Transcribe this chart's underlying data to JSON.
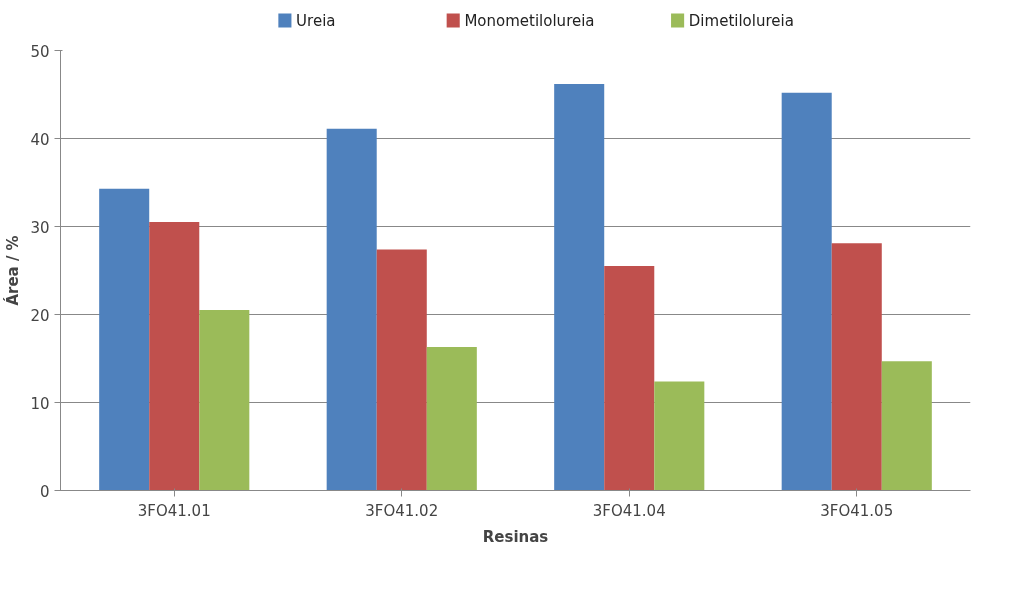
{
  "chart_data": {
    "type": "bar",
    "xlabel": "Resinas",
    "ylabel": "Área / %",
    "categories": [
      "3FO41.01",
      "3FO41.02",
      "3FO41.04",
      "3FO41.05"
    ],
    "series": [
      {
        "name": "Ureia",
        "color": "#4f81bd",
        "values": [
          34.3,
          41.1,
          46.2,
          45.2
        ]
      },
      {
        "name": "Monometilolureia",
        "color": "#c0504d",
        "values": [
          30.5,
          27.4,
          25.5,
          28.1
        ]
      },
      {
        "name": "Dimetilolureia",
        "color": "#9bbb59",
        "values": [
          20.5,
          16.3,
          12.4,
          14.7
        ]
      }
    ],
    "ylim": [
      0,
      50
    ],
    "yticks": [
      0,
      10,
      20,
      30,
      40,
      50
    ],
    "grid": "y",
    "legend": "top"
  }
}
